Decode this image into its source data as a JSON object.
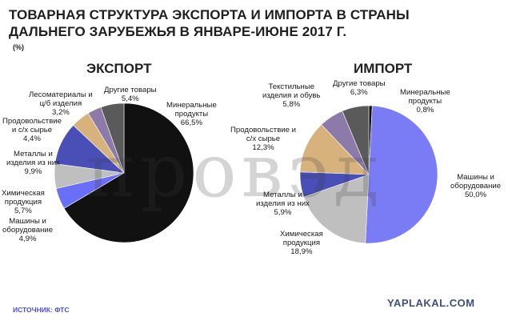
{
  "title": "ТОВАРНАЯ СТРУКТУРА ЭКСПОРТА И ИМПОРТА В СТРАНЫ ДАЛЬНЕГО ЗАРУБЕЖЬЯ В ЯНВАРЕ-ИЮНЕ 2017 Г.",
  "unit": "(%)",
  "watermark": "провэд",
  "source": "ИСТОЧНИК: ФТС",
  "site": "YAPLAKAL.COM",
  "chart_data": [
    {
      "type": "pie",
      "title": "ЭКСПОРТ",
      "slices": [
        {
          "label": "Минеральные продукты",
          "value": 66.5,
          "text": "66,5%",
          "color": "#111111"
        },
        {
          "label": "Машины и оборудование",
          "value": 4.9,
          "text": "4,9%",
          "color": "#6b6ff7"
        },
        {
          "label": "Химическая продукция",
          "value": 5.7,
          "text": "5,7%",
          "color": "#bfbfbf"
        },
        {
          "label": "Металлы и изделия из них",
          "value": 9.9,
          "text": "9,9%",
          "color": "#4a4fb8"
        },
        {
          "label": "Продовольствие и с/х сырье",
          "value": 4.4,
          "text": "4,4%",
          "color": "#d8b27c"
        },
        {
          "label": "Лесоматериалы и ц/б изделия",
          "value": 3.2,
          "text": "3,2%",
          "color": "#8c7aa8"
        },
        {
          "label": "Другие товары",
          "value": 5.4,
          "text": "5,4%",
          "color": "#5a5a5a"
        }
      ]
    },
    {
      "type": "pie",
      "title": "ИМПОРТ",
      "slices": [
        {
          "label": "Минеральные продукты",
          "value": 0.8,
          "text": "0,8%",
          "color": "#111111"
        },
        {
          "label": "Машины и оборудование",
          "value": 50.0,
          "text": "50,0%",
          "color": "#7a7cf5"
        },
        {
          "label": "Химическая продукция",
          "value": 18.9,
          "text": "18,9%",
          "color": "#bfbfbf"
        },
        {
          "label": "Металлы и изделия из них",
          "value": 5.9,
          "text": "5,9%",
          "color": "#4a4fb8"
        },
        {
          "label": "Продовольствие и с/х сырье",
          "value": 12.3,
          "text": "12,3%",
          "color": "#d8b27c"
        },
        {
          "label": "Текстильные изделия и обувь",
          "value": 5.8,
          "text": "5,8%",
          "color": "#8c7aa8"
        },
        {
          "label": "Другие товары",
          "value": 6.3,
          "text": "6,3%",
          "color": "#5a5a5a"
        }
      ]
    }
  ],
  "labels": {
    "export": [
      {
        "line1": "Минеральные",
        "line2": "продукты",
        "line3": "66,5%"
      },
      {
        "line1": "Машины и",
        "line2": "оборудование",
        "line3": "4,9%"
      },
      {
        "line1": "Химическая",
        "line2": "продукция",
        "line3": "5,7%"
      },
      {
        "line1": "Металлы и",
        "line2": "изделия из них",
        "line3": "9,9%"
      },
      {
        "line1": "Продовольствие",
        "line2": "и с/х сырье",
        "line3": "4,4%"
      },
      {
        "line1": "Лесоматериалы и",
        "line2": "ц/б изделия",
        "line3": "3,2%"
      },
      {
        "line1": "Другие товары",
        "line2": "5,4%"
      }
    ],
    "import": [
      {
        "line1": "Минеральные",
        "line2": "продукты",
        "line3": "0,8%"
      },
      {
        "line1": "Машины и",
        "line2": "оборудование",
        "line3": "50,0%"
      },
      {
        "line1": "Химическая",
        "line2": "продукция",
        "line3": "18,9%"
      },
      {
        "line1": "Металлы и",
        "line2": "изделия из них",
        "line3": "5,9%"
      },
      {
        "line1": "Продовольствие и",
        "line2": "с/х сырье",
        "line3": "12,3%"
      },
      {
        "line1": "Текстильные",
        "line2": "изделия и обувь",
        "line3": "5,8%"
      },
      {
        "line1": "Другие товары",
        "line2": "6,3%"
      }
    ]
  }
}
